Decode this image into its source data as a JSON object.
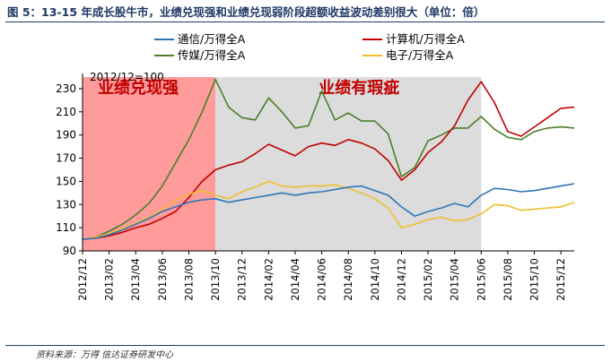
{
  "figure": {
    "title": "图 5：13-15 年成长股牛市，业绩兑现强和业绩兑现弱阶段超额收益波动差别很大（单位：倍）",
    "source": "资料来源：万得   信达证券研发中心"
  },
  "chart_data": {
    "type": "line",
    "title": "",
    "xlabel": "",
    "ylabel": "",
    "ylim": [
      90,
      240
    ],
    "yticks": [
      90,
      110,
      130,
      150,
      170,
      190,
      210,
      230
    ],
    "xlim": [
      "2012-12",
      "2016-01"
    ],
    "x_tick_labels": [
      "2012/12",
      "2013/02",
      "2013/04",
      "2013/06",
      "2013/08",
      "2013/10",
      "2013/12",
      "2014/02",
      "2014/04",
      "2014/06",
      "2014/08",
      "2014/10",
      "2014/12",
      "2015/02",
      "2015/04",
      "2015/06",
      "2015/08",
      "2015/10",
      "2015/12"
    ],
    "grid": false,
    "legend_position": "top",
    "baseline_note": "2012/12=100",
    "bands": [
      {
        "label": "业绩兑现强",
        "start": "2012-12",
        "end": "2013-10",
        "color": "#ff9b9b"
      },
      {
        "label": "业绩有瑕疵",
        "start": "2013-10",
        "end": "2015-06",
        "color": "#dcdcdc"
      }
    ],
    "x": [
      "2012-12",
      "2013-01",
      "2013-02",
      "2013-03",
      "2013-04",
      "2013-05",
      "2013-06",
      "2013-07",
      "2013-08",
      "2013-09",
      "2013-10",
      "2013-11",
      "2013-12",
      "2014-01",
      "2014-02",
      "2014-03",
      "2014-04",
      "2014-05",
      "2014-06",
      "2014-07",
      "2014-08",
      "2014-09",
      "2014-10",
      "2014-11",
      "2014-12",
      "2015-01",
      "2015-02",
      "2015-03",
      "2015-04",
      "2015-05",
      "2015-06",
      "2015-07",
      "2015-08",
      "2015-09",
      "2015-10",
      "2015-11",
      "2015-12",
      "2016-01"
    ],
    "series": [
      {
        "name": "通信/万得全A",
        "color": "#2e75b6",
        "values": [
          100,
          101,
          104,
          108,
          113,
          118,
          124,
          128,
          132,
          134,
          135,
          132,
          134,
          136,
          138,
          140,
          138,
          140,
          141,
          143,
          145,
          146,
          142,
          138,
          128,
          120,
          124,
          127,
          131,
          128,
          138,
          144,
          143,
          141,
          142,
          144,
          146,
          148
        ]
      },
      {
        "name": "计算机/万得全A",
        "color": "#c00000",
        "values": [
          100,
          101,
          103,
          106,
          110,
          113,
          118,
          124,
          136,
          150,
          160,
          164,
          167,
          174,
          182,
          177,
          172,
          180,
          183,
          181,
          186,
          183,
          178,
          168,
          151,
          160,
          175,
          184,
          198,
          220,
          236,
          218,
          193,
          189,
          197,
          205,
          213,
          214
        ]
      },
      {
        "name": "传媒/万得全A",
        "color": "#4a7f2a",
        "values": [
          100,
          102,
          107,
          113,
          121,
          131,
          146,
          166,
          186,
          210,
          238,
          214,
          205,
          203,
          222,
          210,
          196,
          198,
          228,
          203,
          209,
          202,
          202,
          191,
          154,
          162,
          185,
          190,
          196,
          196,
          206,
          195,
          188,
          186,
          193,
          196,
          197,
          196
        ]
      },
      {
        "name": "电子/万得全A",
        "color": "#f0bd30",
        "values": [
          100,
          102,
          105,
          109,
          114,
          119,
          126,
          134,
          139,
          142,
          138,
          135,
          141,
          145,
          150,
          146,
          145,
          146,
          146,
          147,
          144,
          140,
          135,
          127,
          110,
          113,
          117,
          119,
          116,
          117,
          122,
          130,
          129,
          125,
          126,
          127,
          128,
          132
        ]
      }
    ]
  }
}
